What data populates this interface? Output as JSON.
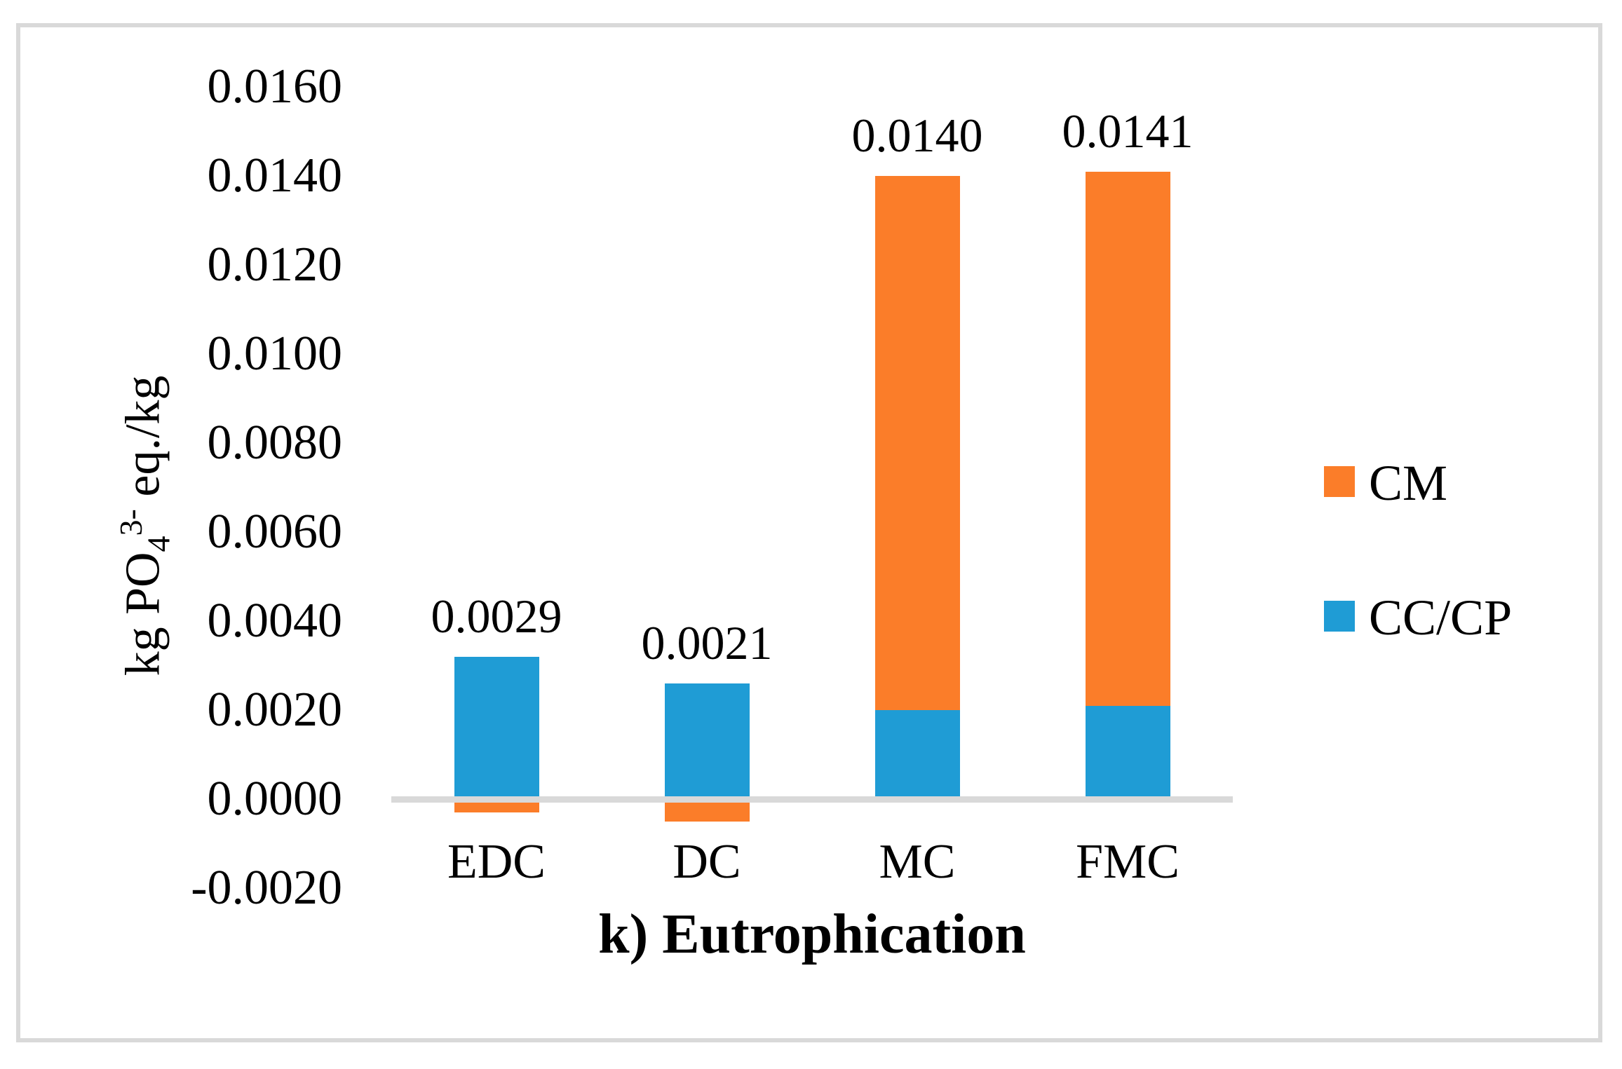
{
  "figure": {
    "border_color": "#D9D9D9",
    "background": "#FFFFFF"
  },
  "chart_data": {
    "type": "bar",
    "stacked": true,
    "title": "k) Eutrophication",
    "ylabel": {
      "prefix": "kg PO",
      "sub": "4",
      "sup": "3-",
      "suffix": " eq./kg"
    },
    "categories": [
      "EDC",
      "DC",
      "MC",
      "FMC"
    ],
    "series": [
      {
        "name": "CM",
        "color": "#FB7D29",
        "values": [
          -0.0003,
          -0.0005,
          0.012,
          0.012
        ]
      },
      {
        "name": "CC/CP",
        "color": "#1F9CD5",
        "values": [
          0.0032,
          0.0026,
          0.002,
          0.0021
        ]
      }
    ],
    "total_labels": [
      "0.0029",
      "0.0021",
      "0.0140",
      "0.0141"
    ],
    "yticks": [
      "0.0160",
      "0.0140",
      "0.0120",
      "0.0100",
      "0.0080",
      "0.0060",
      "0.0040",
      "0.0020",
      "0.0000",
      "-0.0020"
    ],
    "ylim": [
      -0.002,
      0.016
    ],
    "grid": false,
    "legend_position": "right",
    "axis_line_color": "#D9D9D9"
  }
}
